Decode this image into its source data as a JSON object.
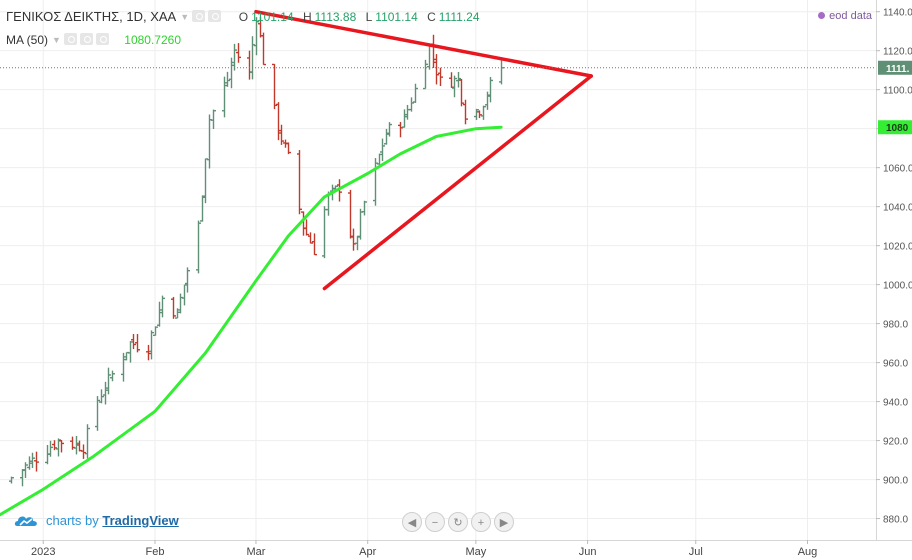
{
  "header": {
    "symbol": "ΓΕΝΙΚΟΣ ΔΕΙΚΤΗΣ, 1D, XAA",
    "ohlc": [
      {
        "k": "O",
        "v": "1101.14"
      },
      {
        "k": "H",
        "v": "1113.88"
      },
      {
        "k": "L",
        "v": "1101.14"
      },
      {
        "k": "C",
        "v": "1111.24"
      }
    ],
    "ma_label": "MA (50)",
    "ma_value": "1080.7260",
    "eod": "eod data"
  },
  "branding": {
    "prefix": "charts by",
    "name": "TradingView"
  },
  "colors": {
    "up": "#5f8f74",
    "down": "#c0392b",
    "ma": "#33ee33",
    "trend": "#e8171f",
    "ma_value": "#2fd22f",
    "axis_text": "#555555"
  },
  "chart_data": {
    "type": "ohlc",
    "title": "ΓΕΝΙΚΟΣ ΔΕΙΚΤΗΣ, 1D, XAA",
    "y_ticks": [
      880,
      900,
      920,
      940,
      960,
      980,
      1000,
      1020,
      1040,
      1060,
      1080,
      1100,
      1120,
      1140
    ],
    "y_tick_labels": [
      "880.0",
      "900.0",
      "920.0",
      "940.0",
      "960.0",
      "980.0",
      "1000.0",
      "1020.0",
      "1040.0",
      "1060.0",
      "1080.0",
      "1100.0",
      "1120.0",
      "1140.0"
    ],
    "ylim": [
      869,
      1146
    ],
    "x_ticks": [
      {
        "date": "2023-01-01",
        "label": "2023"
      },
      {
        "date": "2023-02-01",
        "label": "Feb"
      },
      {
        "date": "2023-03-01",
        "label": "Mar"
      },
      {
        "date": "2023-04-01",
        "label": "Apr"
      },
      {
        "date": "2023-05-01",
        "label": "May"
      },
      {
        "date": "2023-06-01",
        "label": "Jun"
      },
      {
        "date": "2023-07-01",
        "label": "Jul"
      },
      {
        "date": "2023-08-01",
        "label": "Aug"
      }
    ],
    "xlim": [
      "2022-12-20",
      "2023-08-20"
    ],
    "last_price": 1111.24,
    "last_price_label": "1111.",
    "ma_last": 1080.726,
    "ma_last_label": "1080",
    "anchors": [
      {
        "date": "2022-12-23",
        "close": 901
      },
      {
        "date": "2023-01-05",
        "close": 920
      },
      {
        "date": "2023-01-12",
        "close": 917
      },
      {
        "date": "2023-01-16",
        "close": 941
      },
      {
        "date": "2023-01-25",
        "close": 970
      },
      {
        "date": "2023-01-30",
        "close": 968
      },
      {
        "date": "2023-02-03",
        "close": 993
      },
      {
        "date": "2023-02-07",
        "close": 985
      },
      {
        "date": "2023-02-13",
        "close": 1030
      },
      {
        "date": "2023-02-16",
        "close": 1085
      },
      {
        "date": "2023-02-21",
        "close": 1105
      },
      {
        "date": "2023-02-23",
        "close": 1120
      },
      {
        "date": "2023-02-27",
        "close": 1108
      },
      {
        "date": "2023-03-01",
        "close": 1138
      },
      {
        "date": "2023-03-03",
        "close": 1115
      },
      {
        "date": "2023-03-07",
        "close": 1080
      },
      {
        "date": "2023-03-10",
        "close": 1065
      },
      {
        "date": "2023-03-14",
        "close": 1030
      },
      {
        "date": "2023-03-17",
        "close": 1018
      },
      {
        "date": "2023-03-21",
        "close": 1045
      },
      {
        "date": "2023-03-24",
        "close": 1050
      },
      {
        "date": "2023-03-28",
        "close": 1018
      },
      {
        "date": "2023-03-31",
        "close": 1042
      },
      {
        "date": "2023-04-06",
        "close": 1078
      },
      {
        "date": "2023-04-11",
        "close": 1085
      },
      {
        "date": "2023-04-14",
        "close": 1100
      },
      {
        "date": "2023-04-18",
        "close": 1122
      },
      {
        "date": "2023-04-21",
        "close": 1104
      },
      {
        "date": "2023-04-26",
        "close": 1105
      },
      {
        "date": "2023-04-28",
        "close": 1088
      },
      {
        "date": "2023-05-02",
        "close": 1090
      },
      {
        "date": "2023-05-05",
        "close": 1102
      },
      {
        "date": "2023-05-08",
        "close": 1111.24
      }
    ],
    "ma50": [
      {
        "date": "2022-12-20",
        "value": 882
      },
      {
        "date": "2023-01-01",
        "value": 895
      },
      {
        "date": "2023-01-15",
        "value": 912
      },
      {
        "date": "2023-02-01",
        "value": 935
      },
      {
        "date": "2023-02-15",
        "value": 965
      },
      {
        "date": "2023-03-01",
        "value": 1002
      },
      {
        "date": "2023-03-10",
        "value": 1025
      },
      {
        "date": "2023-03-20",
        "value": 1045
      },
      {
        "date": "2023-04-01",
        "value": 1057
      },
      {
        "date": "2023-04-10",
        "value": 1067
      },
      {
        "date": "2023-04-20",
        "value": 1076
      },
      {
        "date": "2023-05-01",
        "value": 1080
      },
      {
        "date": "2023-05-08",
        "value": 1080.726
      }
    ],
    "trendlines": [
      {
        "from": {
          "date": "2023-03-01",
          "value": 1140
        },
        "to": {
          "date": "2023-06-02",
          "value": 1107
        }
      },
      {
        "from": {
          "date": "2023-03-20",
          "value": 998
        },
        "to": {
          "date": "2023-06-02",
          "value": 1107
        }
      }
    ]
  }
}
